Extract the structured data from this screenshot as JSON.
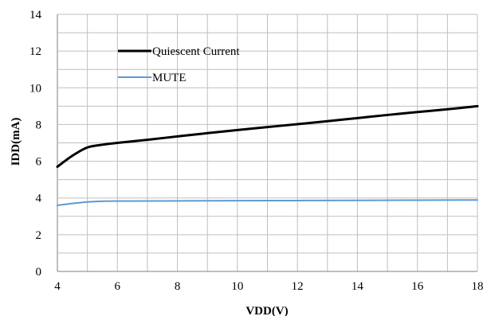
{
  "chart_data": {
    "type": "line",
    "title": "",
    "xlabel": "VDD(V)",
    "ylabel": "IDD(mA)",
    "xlim": [
      4,
      18
    ],
    "ylim": [
      0,
      14
    ],
    "x_ticks": [
      "4",
      "6",
      "8",
      "10",
      "12",
      "14",
      "16",
      "18"
    ],
    "y_ticks": [
      "0",
      "2",
      "4",
      "6",
      "8",
      "10",
      "12",
      "14"
    ],
    "grid": true,
    "legend_position": "top-left",
    "series": [
      {
        "name": "Quiescent Current",
        "color": "#000000",
        "x": [
          4,
          4.5,
          5,
          5.5,
          6,
          7,
          8,
          9,
          10,
          11,
          12,
          13,
          14,
          15,
          16,
          17,
          18
        ],
        "y": [
          5.7,
          6.3,
          6.75,
          6.9,
          7.0,
          7.17,
          7.35,
          7.53,
          7.7,
          7.86,
          8.02,
          8.18,
          8.35,
          8.52,
          8.68,
          8.83,
          9.0
        ]
      },
      {
        "name": "MUTE",
        "color": "#5B9BD5",
        "x": [
          4,
          4.5,
          5,
          5.5,
          6,
          8,
          10,
          12,
          14,
          16,
          18
        ],
        "y": [
          3.6,
          3.7,
          3.78,
          3.82,
          3.83,
          3.84,
          3.85,
          3.86,
          3.87,
          3.88,
          3.89
        ]
      }
    ]
  }
}
